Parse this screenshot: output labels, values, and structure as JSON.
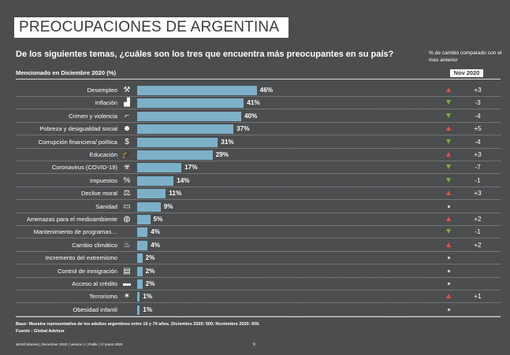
{
  "header": {
    "title": "PREOCUPACIONES DE ARGENTINA",
    "question": "De los siguientes temas, ¿cuáles son los tres que encuentra más preocupantes en su país?",
    "sublabel": "Mencionado en Diciembre  2020 (%)",
    "change_header": "% de cambio comparado con el mes anterior",
    "change_period": "Nov 2020"
  },
  "colors": {
    "bar": "#7db0c8",
    "background": "#4b4d4f",
    "up": "#e0524a",
    "down": "#7cae3e",
    "flat": "#c8c8c8"
  },
  "chart_data": {
    "type": "bar",
    "orientation": "horizontal",
    "xlim": [
      0,
      100
    ],
    "categories": [
      "Desempleo",
      "Inflación",
      "Crimen y violencia",
      "Pobreza y desigualdad social",
      "Corrupción financiera/ política",
      "Educación",
      "Coronavirus (COVID-19)",
      "Impuestos",
      "Declive moral",
      "Sanidad",
      "Amenazas para el medioambiente",
      "Mantenimiento de programas…",
      "Cambio climático",
      "Incremento del extremismo",
      "Control de inmigración",
      "Acceso al crédito",
      "Terrorismo",
      "Obesidad infantil"
    ],
    "values": [
      46,
      41,
      40,
      37,
      31,
      29,
      17,
      14,
      11,
      9,
      5,
      4,
      4,
      2,
      2,
      2,
      1,
      1
    ],
    "value_labels": [
      "46%",
      "41%",
      "40%",
      "37%",
      "31%",
      "29%",
      "17%",
      "14%",
      "11%",
      "9%",
      "5%",
      "4%",
      "4%",
      "2%",
      "2%",
      "2%",
      "1%",
      "1%"
    ],
    "change_labels": [
      "+3",
      "-3",
      "-4",
      "+5",
      "-4",
      "+3",
      "-7",
      "-1",
      "+3",
      "",
      "+2",
      "-1",
      "+2",
      "",
      "",
      "",
      "+1",
      ""
    ],
    "change_direction": [
      "up",
      "down",
      "down",
      "up",
      "down",
      "up",
      "down",
      "down",
      "up",
      "flat",
      "up",
      "down",
      "up",
      "flat",
      "flat",
      "flat",
      "up",
      "flat"
    ],
    "icons": [
      "worker-icon",
      "chart-icon",
      "gun-icon",
      "people-icon",
      "money-icon",
      "graduation-cap-icon",
      "biohazard-icon",
      "tax-icon",
      "scales-icon",
      "pill-icon",
      "earth-icon",
      "",
      "flame-icon",
      "",
      "luggage-icon",
      "card-icon",
      "terrorism-icon",
      ""
    ],
    "icon_glyphs": [
      "⚒",
      "▟",
      "⌐",
      "☻",
      "$",
      "🎓",
      "☣",
      "%",
      "⚖",
      "▭",
      "◍",
      "",
      "♨",
      "",
      "▤",
      "▬",
      "✶",
      ""
    ]
  },
  "footer": {
    "base_note": "Base: Muestra representativa de los adultos argentinos entre 16 y 74 años. Diciembre  2020: 500; Noviembre  2020: 500.",
    "source_note": "Fuente : Global Advisor",
    "footer_line": "World Worries  |  December 2020  |   Version 1   |   Public  |  © Ipsos 2020",
    "page_number": "9"
  }
}
